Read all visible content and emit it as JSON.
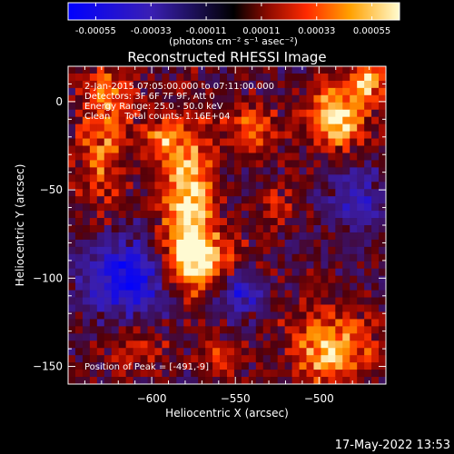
{
  "chart_data": {
    "type": "heatmap",
    "title": "Reconstructed RHESSI Image",
    "xlabel": "Heliocentric X (arcsec)",
    "ylabel": "Heliocentric Y (arcsec)",
    "x_ticks": [
      -600,
      -550,
      -500
    ],
    "y_ticks": [
      0,
      -50,
      -100,
      -150
    ],
    "xlim": [
      -650,
      -460
    ],
    "ylim": [
      -160,
      20
    ],
    "colorbar": {
      "ticks": [
        "-0.00055",
        "-0.00033",
        "-0.00011",
        "0.00011",
        "0.00033",
        "0.00055"
      ],
      "range": [
        -0.00055,
        0.00055
      ],
      "unit_label": "(photons cm⁻² s⁻¹ asec⁻²)"
    },
    "annotations": [
      "2-Jan-2015 07:05:00.000 to 07:11:00.000",
      "Detectors: 3F 6F 7F 9F, Att 0",
      "Energy Range: 25.0 - 50.0 keV",
      "Clean     Total counts: 1.16E+04"
    ],
    "peak_label": "Position of Peak = [-491,-9]",
    "peak": [
      -491,
      -9
    ],
    "grid": false
  },
  "footer_timestamp": "17-May-2022 13:53"
}
